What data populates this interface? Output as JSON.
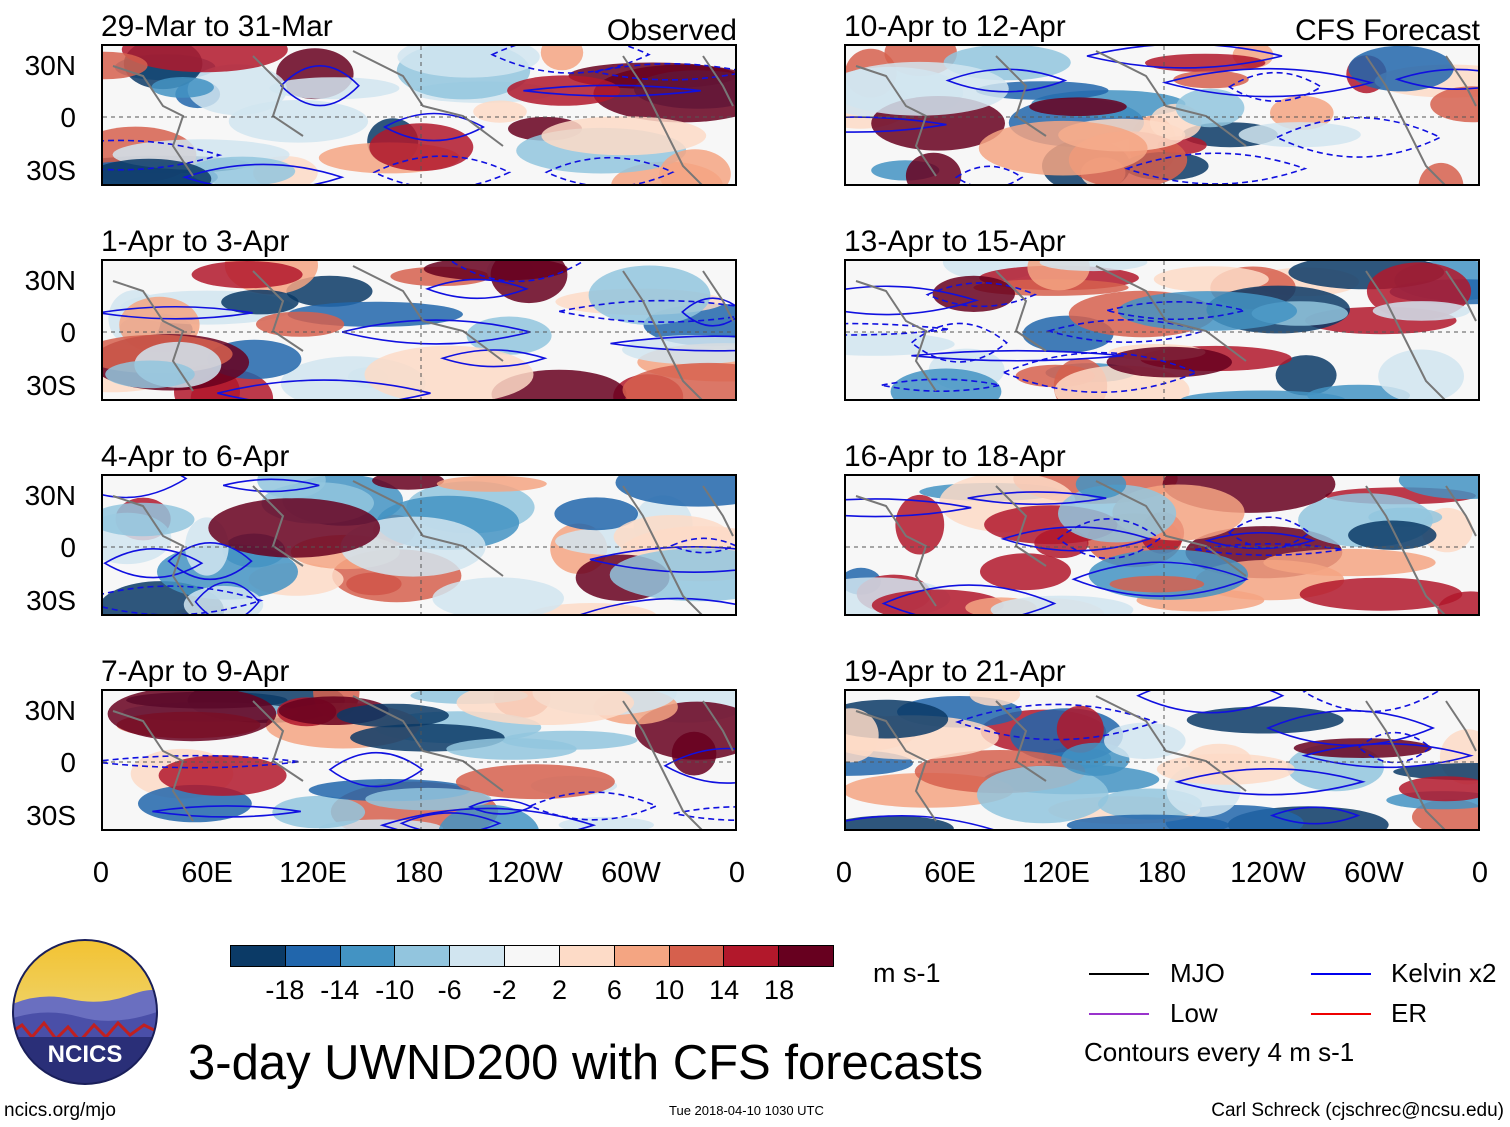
{
  "chart_data": {
    "type": "heatmap",
    "title": "3-day UWND200 with CFS forecasts",
    "variable": "UWND200",
    "units": "m s-1",
    "contour_note": "Contours every 4 m s-1",
    "longitude_ticks": [
      "0",
      "60E",
      "120E",
      "180",
      "120W",
      "60W",
      "0"
    ],
    "latitude_ticks": [
      "30N",
      "0",
      "30S"
    ],
    "colorbar": {
      "levels": [
        "-18",
        "-14",
        "-10",
        "-6",
        "-2",
        "2",
        "6",
        "10",
        "14",
        "18"
      ],
      "colors": [
        "#0b3a66",
        "#2166ac",
        "#4393c3",
        "#92c5de",
        "#d1e5f0",
        "#f7f7f7",
        "#fddbc7",
        "#f4a582",
        "#d6604d",
        "#b2182b",
        "#67001f"
      ]
    },
    "legend": [
      {
        "label": "MJO",
        "color": "#000000"
      },
      {
        "label": "Kelvin x2",
        "color": "#0000ee"
      },
      {
        "label": "Low",
        "color": "#9933cc"
      },
      {
        "label": "ER",
        "color": "#ee0000"
      }
    ],
    "panels": [
      {
        "title": "29-Mar to 31-Mar",
        "tag": "Observed",
        "kind": "observed"
      },
      {
        "title": "10-Apr to 12-Apr",
        "tag": "CFS Forecast",
        "kind": "forecast"
      },
      {
        "title": "1-Apr to 3-Apr",
        "tag": "",
        "kind": "observed"
      },
      {
        "title": "13-Apr to 15-Apr",
        "tag": "",
        "kind": "forecast"
      },
      {
        "title": "4-Apr to 6-Apr",
        "tag": "",
        "kind": "observed"
      },
      {
        "title": "16-Apr to 18-Apr",
        "tag": "",
        "kind": "forecast"
      },
      {
        "title": "7-Apr to 9-Apr",
        "tag": "",
        "kind": "observed"
      },
      {
        "title": "19-Apr to 21-Apr",
        "tag": "",
        "kind": "forecast"
      }
    ]
  },
  "logo": {
    "text": "NCICS"
  },
  "footer": {
    "left": "ncics.org/mjo",
    "center": "Tue 2018-04-10 1030 UTC",
    "right": "Carl Schreck (cjschrec@ncsu.edu)"
  }
}
